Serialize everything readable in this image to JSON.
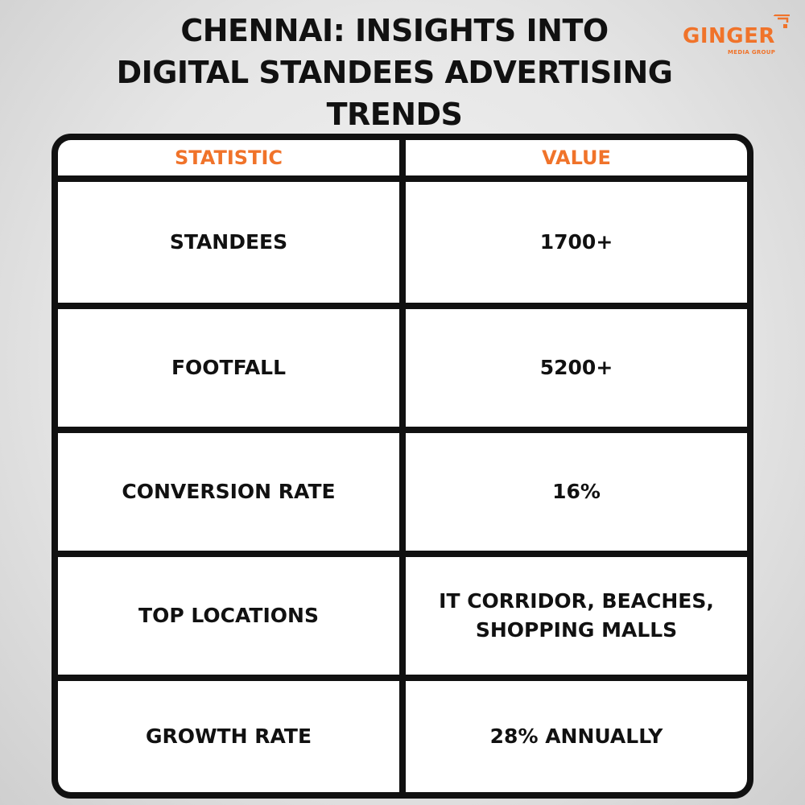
{
  "title": {
    "line1": "CHENNAI: INSIGHTS INTO",
    "line2": "DIGITAL STANDEES ADVERTISING",
    "line3": "TRENDS"
  },
  "logo": {
    "word": "GINGER",
    "sub": "MEDIA GROUP",
    "icon": "signal-icon",
    "color": "#f0732a"
  },
  "table": {
    "headers": [
      "STATISTIC",
      "VALUE"
    ],
    "rows": [
      [
        "STANDEES",
        "1700+"
      ],
      [
        "FOOTFALL",
        "5200+"
      ],
      [
        "CONVERSION RATE",
        "16%"
      ],
      [
        "TOP LOCATIONS",
        "IT CORRIDOR, BEACHES, SHOPPING MALLS"
      ],
      [
        "GROWTH RATE",
        "28% ANNUALLY"
      ]
    ]
  },
  "colors": {
    "accent": "#f0732a",
    "border": "#111111",
    "cell_background": "#ffffff"
  }
}
